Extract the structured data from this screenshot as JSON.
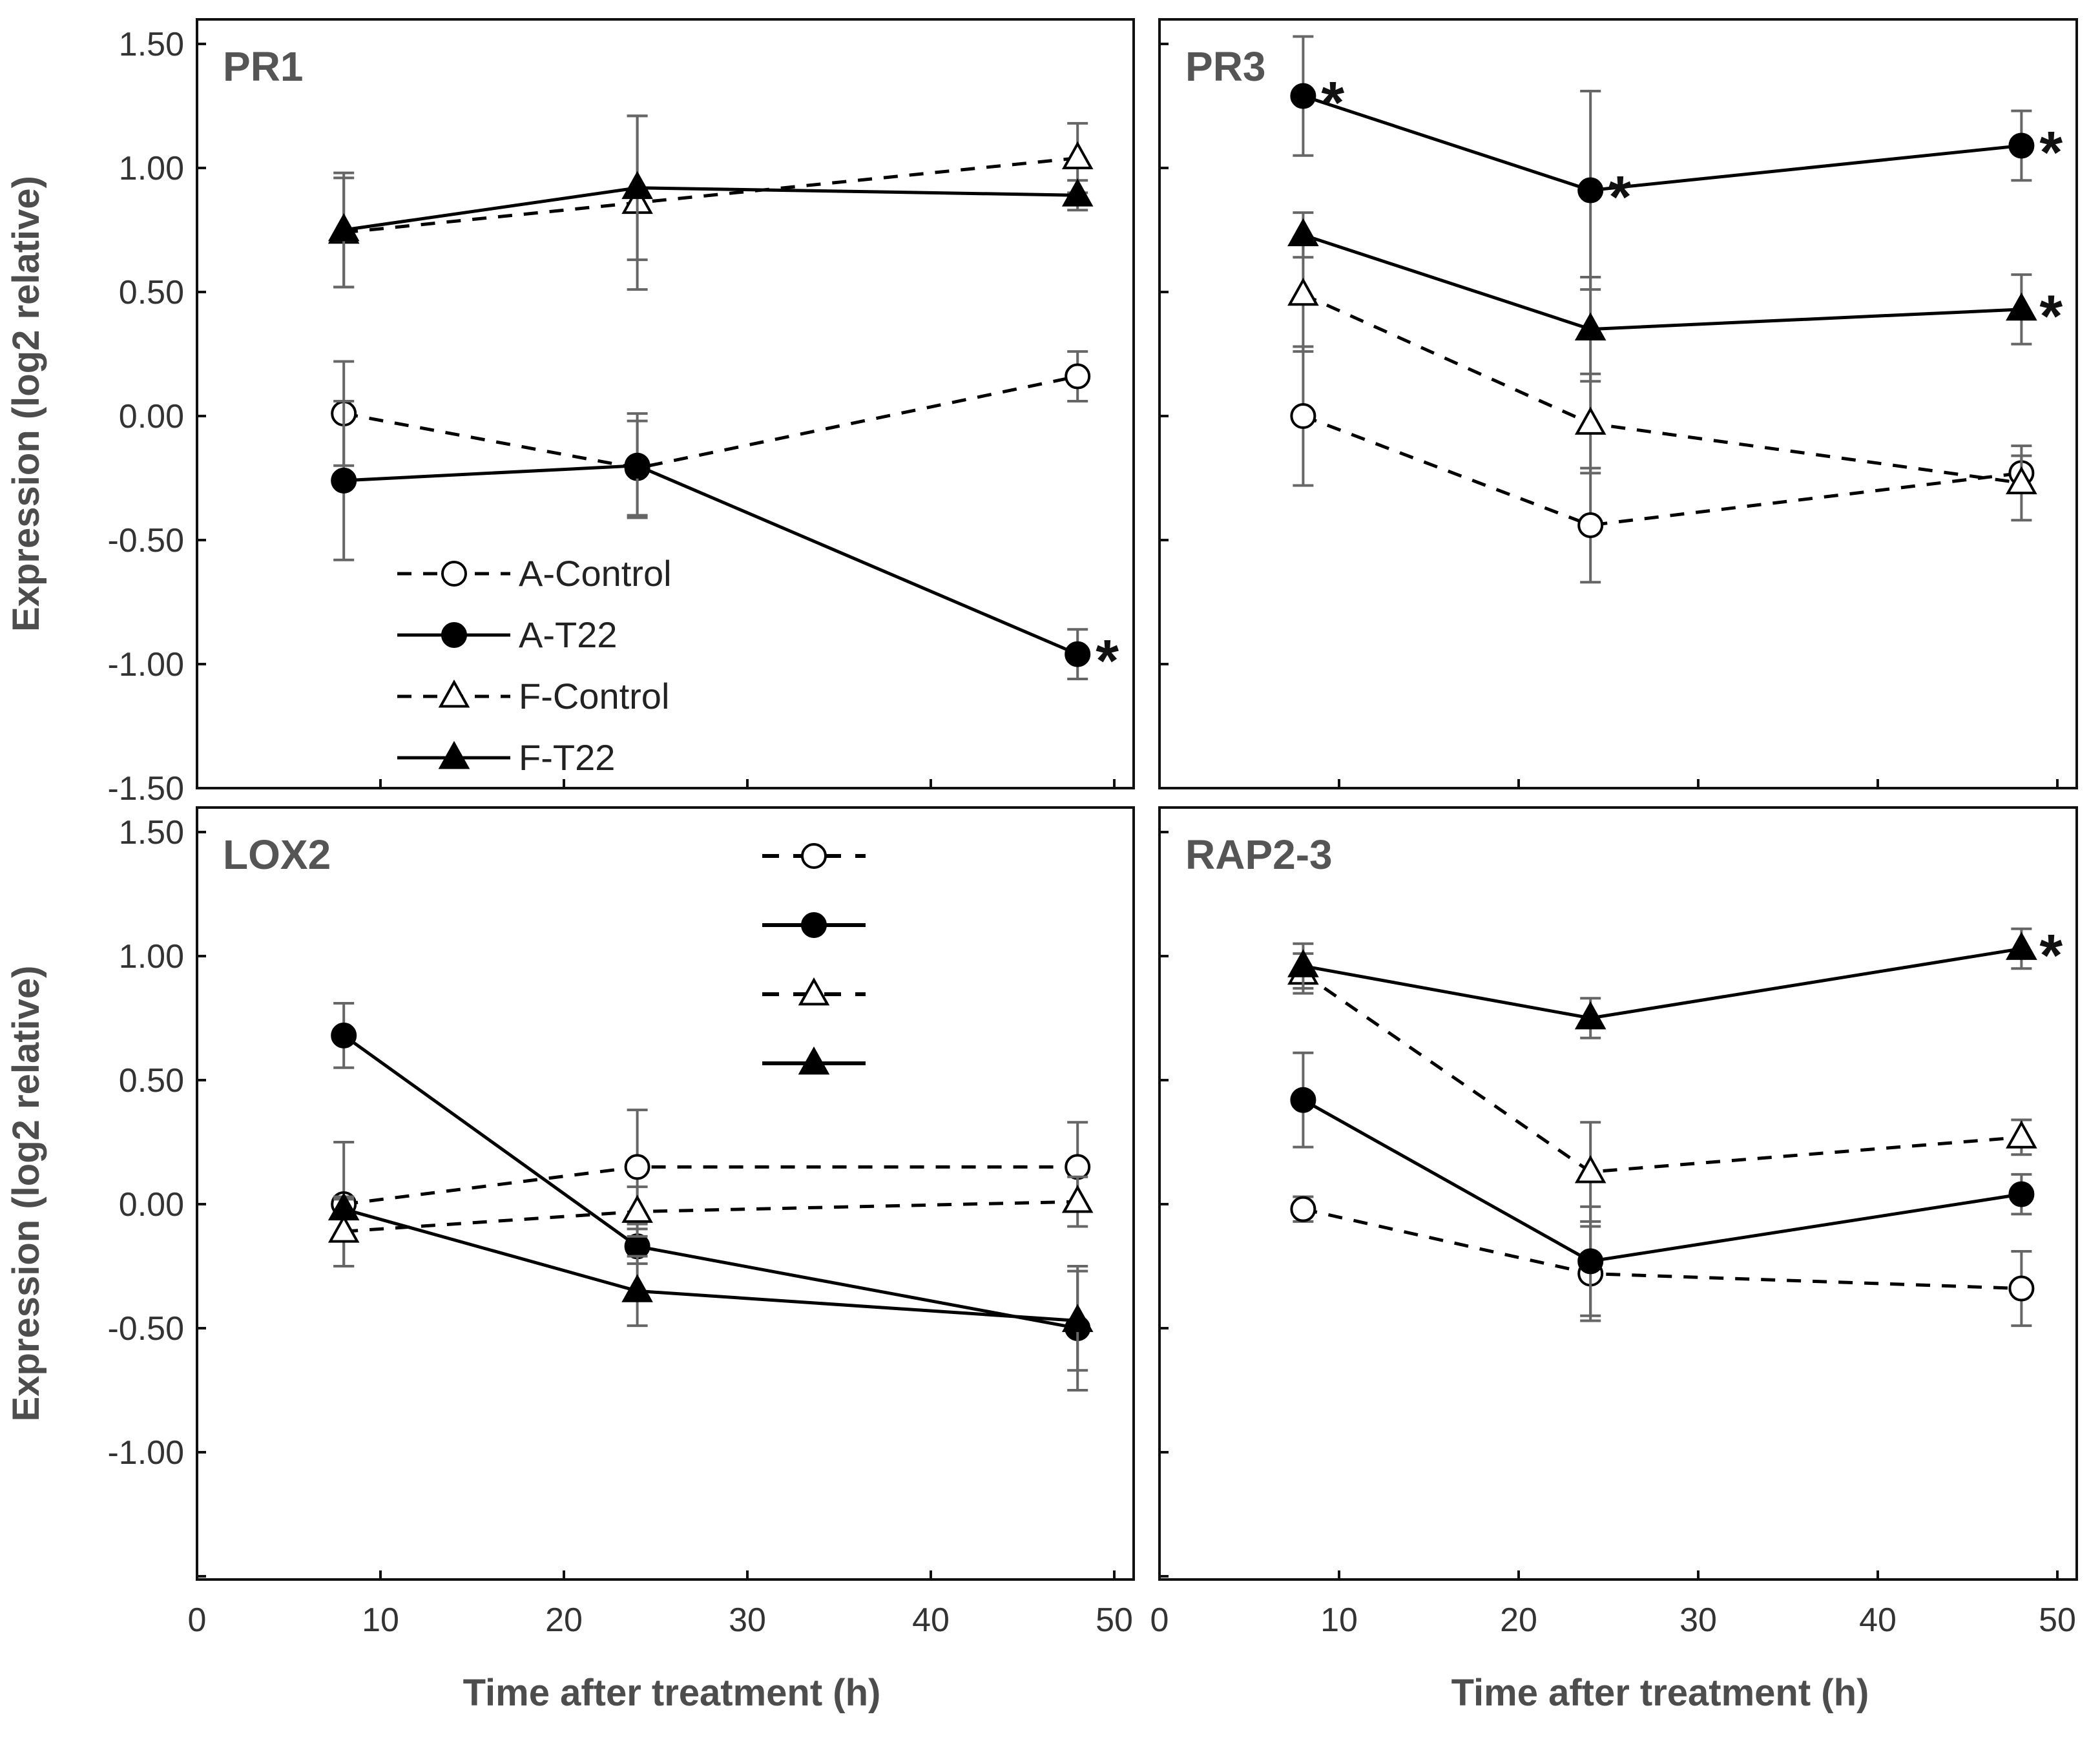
{
  "chart_data": [
    {
      "type": "line",
      "title": "PR1",
      "xlabel": "",
      "ylabel": "Expression (log2 relative)",
      "xlim": [
        0,
        50
      ],
      "ylim": [
        -1.5,
        1.5
      ],
      "yticks": [
        "1.50",
        "1.00",
        "0.50",
        "0.00",
        "-0.50",
        "-1.00",
        "-1.50"
      ],
      "xticks": [],
      "x": [
        8,
        24,
        48
      ],
      "series": [
        {
          "name": "A-Control",
          "values": [
            0.01,
            -0.21,
            0.16
          ],
          "errors": [
            0.21,
            0.19,
            0.1
          ],
          "line": "dashed",
          "marker": "circle-open",
          "significant": [
            false,
            false,
            false
          ]
        },
        {
          "name": "A-T22",
          "values": [
            -0.26,
            -0.2,
            -0.96
          ],
          "errors": [
            0.32,
            0.21,
            0.1
          ],
          "line": "solid",
          "marker": "circle-filled",
          "significant": [
            false,
            false,
            true
          ]
        },
        {
          "name": "F-Control",
          "values": [
            0.74,
            0.86,
            1.04
          ],
          "errors": [
            0.22,
            0.35,
            0.14
          ],
          "line": "dashed",
          "marker": "triangle-open",
          "significant": [
            false,
            false,
            false
          ]
        },
        {
          "name": "F-T22",
          "values": [
            0.75,
            0.92,
            0.89
          ],
          "errors": [
            0.23,
            0.29,
            0.06
          ],
          "line": "solid",
          "marker": "triangle-filled",
          "significant": [
            false,
            false,
            false
          ]
        }
      ],
      "legend": {
        "position": "bottom-center",
        "entries": [
          "A-Control",
          "A-T22",
          "F-Control",
          "F-T22"
        ]
      },
      "significance_marker": "*"
    },
    {
      "type": "line",
      "title": "PR3",
      "xlabel": "",
      "ylabel": "",
      "xlim": [
        0,
        50
      ],
      "ylim": [
        -1.5,
        1.5
      ],
      "yticks": [],
      "xticks": [],
      "x": [
        8,
        24,
        48
      ],
      "series": [
        {
          "name": "A-Control",
          "values": [
            0.0,
            -0.44,
            -0.23
          ],
          "errors": [
            0.28,
            0.23,
            0.07
          ],
          "line": "dashed",
          "marker": "circle-open",
          "significant": [
            false,
            false,
            false
          ]
        },
        {
          "name": "A-T22",
          "values": [
            1.29,
            0.91,
            1.09
          ],
          "errors": [
            0.24,
            0.4,
            0.14
          ],
          "line": "solid",
          "marker": "circle-filled",
          "significant": [
            true,
            true,
            true
          ]
        },
        {
          "name": "F-Control",
          "values": [
            0.49,
            -0.03,
            -0.27
          ],
          "errors": [
            0.23,
            0.2,
            0.15
          ],
          "line": "dashed",
          "marker": "triangle-open",
          "significant": [
            false,
            false,
            false
          ]
        },
        {
          "name": "F-T22",
          "values": [
            0.73,
            0.35,
            0.43
          ],
          "errors": [
            0.09,
            0.21,
            0.14
          ],
          "line": "solid",
          "marker": "triangle-filled",
          "significant": [
            false,
            false,
            true
          ]
        }
      ],
      "significance_marker": "*"
    },
    {
      "type": "line",
      "title": "LOX2",
      "xlabel": "",
      "ylabel": "Expression (log2 relative)",
      "xlim": [
        0,
        50
      ],
      "ylim": [
        -1.5,
        1.5
      ],
      "yticks": [
        "1.50",
        "1.00",
        "0.50",
        "0.00",
        "-0.50",
        "-1.00"
      ],
      "xticks": [
        "0",
        "10",
        "20",
        "30",
        "40",
        "50"
      ],
      "x": [
        8,
        24,
        48
      ],
      "series": [
        {
          "name": "A-Control",
          "values": [
            0.0,
            0.15,
            0.15
          ],
          "errors": [
            0.25,
            0.23,
            0.18
          ],
          "line": "dashed",
          "marker": "circle-open",
          "significant": [
            false,
            false,
            false
          ]
        },
        {
          "name": "A-T22",
          "values": [
            0.68,
            -0.17,
            -0.5
          ],
          "errors": [
            0.13,
            0.07,
            0.25
          ],
          "line": "solid",
          "marker": "circle-filled",
          "significant": [
            false,
            false,
            false
          ]
        },
        {
          "name": "F-Control",
          "values": [
            -0.11,
            -0.03,
            0.01
          ],
          "errors": [
            0.14,
            0.1,
            0.1
          ],
          "line": "dashed",
          "marker": "triangle-open",
          "significant": [
            false,
            false,
            false
          ]
        },
        {
          "name": "F-T22",
          "values": [
            -0.02,
            -0.35,
            -0.47
          ],
          "errors": [
            0.04,
            0.14,
            0.2
          ],
          "line": "solid",
          "marker": "triangle-filled",
          "significant": [
            false,
            false,
            false
          ]
        }
      ],
      "legend": {
        "position": "top-center",
        "entries": []
      },
      "significance_marker": "*"
    },
    {
      "type": "line",
      "title": "RAP2-3",
      "xlabel": "",
      "ylabel": "",
      "xlim": [
        0,
        50
      ],
      "ylim": [
        -1.5,
        1.5
      ],
      "yticks": [],
      "xticks": [
        "0",
        "10",
        "20",
        "30",
        "40",
        "50"
      ],
      "x": [
        8,
        24,
        48
      ],
      "series": [
        {
          "name": "A-Control",
          "values": [
            -0.02,
            -0.28,
            -0.34
          ],
          "errors": [
            0.05,
            0.19,
            0.15
          ],
          "line": "dashed",
          "marker": "circle-open",
          "significant": [
            false,
            false,
            false
          ]
        },
        {
          "name": "A-T22",
          "values": [
            0.42,
            -0.23,
            0.04
          ],
          "errors": [
            0.19,
            0.22,
            0.08
          ],
          "line": "solid",
          "marker": "circle-filled",
          "significant": [
            false,
            false,
            false
          ]
        },
        {
          "name": "F-Control",
          "values": [
            0.93,
            0.13,
            0.27
          ],
          "errors": [
            0.08,
            0.2,
            0.07
          ],
          "line": "dashed",
          "marker": "triangle-open",
          "significant": [
            false,
            false,
            false
          ]
        },
        {
          "name": "F-T22",
          "values": [
            0.96,
            0.75,
            1.03
          ],
          "errors": [
            0.09,
            0.08,
            0.08
          ],
          "line": "solid",
          "marker": "triangle-filled",
          "significant": [
            false,
            false,
            true
          ]
        }
      ],
      "significance_marker": "*"
    }
  ],
  "shared": {
    "xlabel": "Time after treatment (h)"
  }
}
